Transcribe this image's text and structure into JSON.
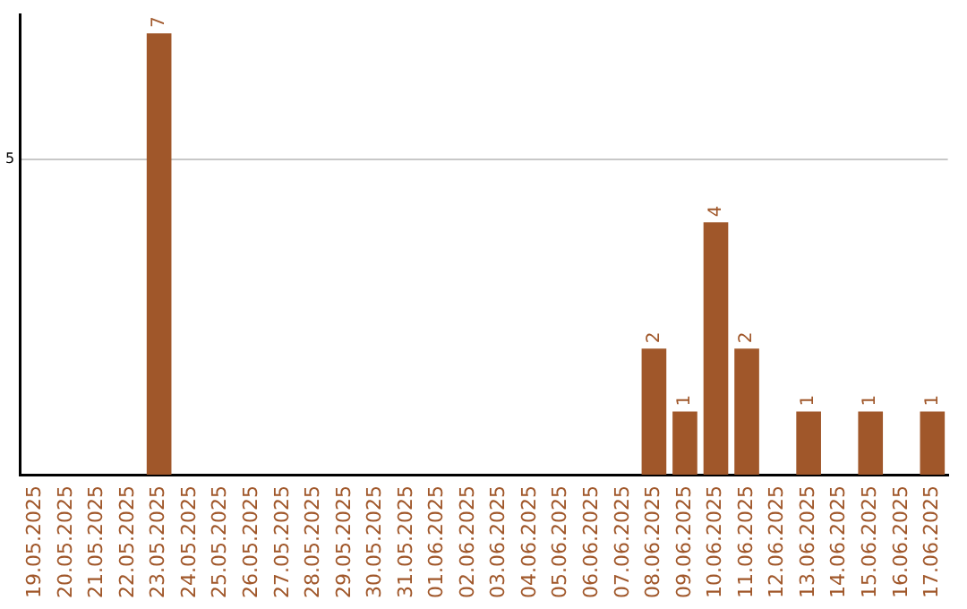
{
  "chart_data": {
    "type": "bar",
    "categories": [
      "19.05.2025",
      "20.05.2025",
      "21.05.2025",
      "22.05.2025",
      "23.05.2025",
      "24.05.2025",
      "25.05.2025",
      "26.05.2025",
      "27.05.2025",
      "28.05.2025",
      "29.05.2025",
      "30.05.2025",
      "31.05.2025",
      "01.06.2025",
      "02.06.2025",
      "03.06.2025",
      "04.06.2025",
      "05.06.2025",
      "06.06.2025",
      "07.06.2025",
      "08.06.2025",
      "09.06.2025",
      "10.06.2025",
      "11.06.2025",
      "12.06.2025",
      "13.06.2025",
      "14.06.2025",
      "15.06.2025",
      "16.06.2025",
      "17.06.2025"
    ],
    "values": [
      0,
      0,
      0,
      0,
      7,
      0,
      0,
      0,
      0,
      0,
      0,
      0,
      0,
      0,
      0,
      0,
      0,
      0,
      0,
      0,
      2,
      1,
      4,
      2,
      0,
      1,
      0,
      1,
      0,
      1
    ],
    "value_labels": [
      null,
      null,
      null,
      null,
      "7",
      null,
      null,
      null,
      null,
      null,
      null,
      null,
      null,
      null,
      null,
      null,
      null,
      null,
      null,
      null,
      "2",
      "1",
      "4",
      "2",
      null,
      "1",
      null,
      "1",
      null,
      "1"
    ],
    "color": "#a0572a",
    "ylim": [
      0,
      7.3
    ],
    "yticks": [
      5
    ],
    "grid": "y",
    "legend": false
  }
}
